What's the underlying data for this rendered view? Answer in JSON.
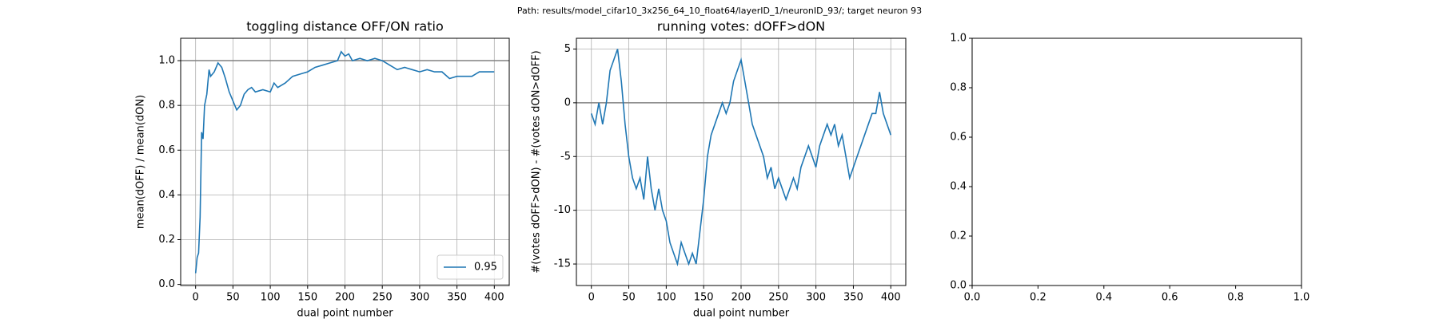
{
  "suptitle": "Path: results/model_cifar10_3x256_64_10_float64/layerID_1/neuronID_93/; target neuron 93",
  "chart_data": [
    {
      "type": "line",
      "title": "toggling distance OFF/ON ratio",
      "xlabel": "dual point number",
      "ylabel": "mean(dOFF) / mean(dON)",
      "x": [
        0,
        2,
        4,
        6,
        8,
        10,
        12,
        15,
        18,
        20,
        25,
        30,
        35,
        40,
        45,
        50,
        55,
        60,
        65,
        70,
        75,
        80,
        90,
        100,
        105,
        110,
        120,
        130,
        140,
        150,
        160,
        170,
        180,
        190,
        195,
        200,
        205,
        210,
        220,
        230,
        240,
        250,
        260,
        270,
        280,
        290,
        300,
        310,
        320,
        330,
        340,
        350,
        360,
        370,
        380,
        390,
        400
      ],
      "series": [
        {
          "name": "0.95",
          "color": "#1f77b4",
          "values": [
            0.05,
            0.12,
            0.14,
            0.3,
            0.68,
            0.65,
            0.8,
            0.85,
            0.96,
            0.93,
            0.95,
            0.99,
            0.97,
            0.92,
            0.86,
            0.82,
            0.78,
            0.8,
            0.85,
            0.87,
            0.88,
            0.86,
            0.87,
            0.86,
            0.9,
            0.88,
            0.9,
            0.93,
            0.94,
            0.95,
            0.97,
            0.98,
            0.99,
            1.0,
            1.04,
            1.02,
            1.03,
            1.0,
            1.01,
            1.0,
            1.01,
            1.0,
            0.98,
            0.96,
            0.97,
            0.96,
            0.95,
            0.96,
            0.95,
            0.95,
            0.92,
            0.93,
            0.93,
            0.93,
            0.95,
            0.95,
            0.95
          ]
        }
      ],
      "hline": 1.0,
      "xlim": [
        -20,
        420
      ],
      "ylim": [
        -0.005,
        1.1
      ],
      "xticks": [
        0,
        50,
        100,
        150,
        200,
        250,
        300,
        350,
        400
      ],
      "yticks": [
        {
          "value": 0,
          "label": "0.0"
        },
        {
          "value": 0.2,
          "label": "0.2"
        },
        {
          "value": 0.4,
          "label": "0.4"
        },
        {
          "value": 0.6,
          "label": "0.6"
        },
        {
          "value": 0.8,
          "label": "0.8"
        },
        {
          "value": 1,
          "label": "1.0"
        }
      ],
      "grid": true,
      "legend": "lower right"
    },
    {
      "type": "line",
      "title": "running votes: dOFF>dON",
      "xlabel": "dual point number",
      "ylabel": "#(votes dOFF>dON) - #(votes dON>dOFF)",
      "x": [
        0,
        5,
        10,
        15,
        20,
        25,
        30,
        35,
        40,
        45,
        50,
        55,
        60,
        65,
        70,
        75,
        80,
        85,
        90,
        95,
        100,
        105,
        110,
        115,
        120,
        125,
        130,
        135,
        140,
        145,
        150,
        155,
        160,
        165,
        170,
        175,
        180,
        185,
        190,
        195,
        200,
        205,
        210,
        215,
        220,
        225,
        230,
        235,
        240,
        245,
        250,
        255,
        260,
        265,
        270,
        275,
        280,
        285,
        290,
        295,
        300,
        305,
        310,
        315,
        320,
        325,
        330,
        335,
        340,
        345,
        350,
        355,
        360,
        365,
        370,
        375,
        380,
        385,
        390,
        395,
        400
      ],
      "series": [
        {
          "color": "#1f77b4",
          "values": [
            -1,
            -2,
            0,
            -2,
            0,
            3,
            4,
            5,
            2,
            -2,
            -5,
            -7,
            -8,
            -7,
            -9,
            -5,
            -8,
            -10,
            -8,
            -10,
            -11,
            -13,
            -14,
            -15,
            -13,
            -14,
            -15,
            -14,
            -15,
            -12,
            -9,
            -5,
            -3,
            -2,
            -1,
            0,
            -1,
            0,
            2,
            3,
            4,
            2,
            0,
            -2,
            -3,
            -4,
            -5,
            -7,
            -6,
            -8,
            -7,
            -8,
            -9,
            -8,
            -7,
            -8,
            -6,
            -5,
            -4,
            -5,
            -6,
            -4,
            -3,
            -2,
            -3,
            -2,
            -4,
            -3,
            -5,
            -7,
            -6,
            -5,
            -4,
            -3,
            -2,
            -1,
            -1,
            1,
            -1,
            -2,
            -3
          ]
        }
      ],
      "hline": 0,
      "xlim": [
        -20,
        420
      ],
      "ylim": [
        -17,
        6
      ],
      "xticks": [
        0,
        50,
        100,
        150,
        200,
        250,
        300,
        350,
        400
      ],
      "yticks": [
        -15,
        -10,
        -5,
        0,
        5
      ],
      "grid": true
    },
    {
      "type": "empty",
      "xlim": [
        0,
        1
      ],
      "ylim": [
        0,
        1
      ],
      "xticks": [
        {
          "value": 0,
          "label": "0.0"
        },
        {
          "value": 0.2,
          "label": "0.2"
        },
        {
          "value": 0.4,
          "label": "0.4"
        },
        {
          "value": 0.6,
          "label": "0.6"
        },
        {
          "value": 0.8,
          "label": "0.8"
        },
        {
          "value": 1,
          "label": "1.0"
        }
      ],
      "yticks": [
        {
          "value": 0,
          "label": "0.0"
        },
        {
          "value": 0.2,
          "label": "0.2"
        },
        {
          "value": 0.4,
          "label": "0.4"
        },
        {
          "value": 0.6,
          "label": "0.6"
        },
        {
          "value": 0.8,
          "label": "0.8"
        },
        {
          "value": 1,
          "label": "1.0"
        }
      ],
      "grid": false
    }
  ]
}
